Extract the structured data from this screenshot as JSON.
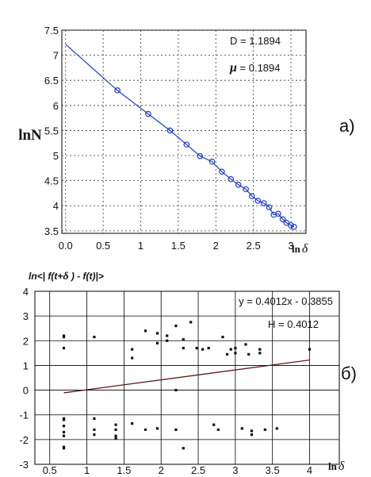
{
  "chart_data": [
    {
      "type": "line",
      "xlabel": {
        "prefix": "ln",
        "symbol": "δ"
      },
      "ylabel": "lnN",
      "xlim": [
        -0.05,
        3.2
      ],
      "ylim": [
        3.45,
        7.5
      ],
      "xticks": [
        "0.0",
        "0.5",
        "1",
        "1.5",
        "2",
        "2.5",
        "3"
      ],
      "xtick_values": [
        0,
        0.5,
        1,
        1.5,
        2,
        2.5,
        3
      ],
      "yticks": [
        "3.5",
        "4",
        "4.5",
        "5",
        "5.5",
        "6",
        "6.5",
        "7",
        "7.5"
      ],
      "ytick_values": [
        3.5,
        4,
        4.5,
        5,
        5.5,
        6,
        6.5,
        7,
        7.5
      ],
      "grid": true,
      "color": "#1f3fbf",
      "annotations": {
        "d_text": "D = 1.1894",
        "mu_symbol": "μ",
        "mu_text": " = 0.1894"
      },
      "panel_label": "а)",
      "x": [
        0.0,
        0.69,
        1.1,
        1.39,
        1.61,
        1.79,
        1.95,
        2.08,
        2.2,
        2.3,
        2.4,
        2.48,
        2.56,
        2.64,
        2.71,
        2.77,
        2.83,
        2.89,
        2.94,
        3.0,
        3.04
      ],
      "y": [
        7.22,
        6.3,
        5.83,
        5.5,
        5.22,
        4.99,
        4.88,
        4.68,
        4.53,
        4.42,
        4.33,
        4.19,
        4.1,
        4.05,
        3.97,
        3.82,
        3.84,
        3.73,
        3.66,
        3.61,
        3.58
      ]
    },
    {
      "type": "scatter",
      "ylabel": {
        "prefix": "ln<| f(t+",
        "symbol": "δ",
        "suffix": " ) - f(t)|>"
      },
      "xlabel": {
        "prefix": "ln",
        "symbol": "δ"
      },
      "xlim": [
        0.3,
        4.4
      ],
      "ylim": [
        -3,
        4
      ],
      "xticks": [
        "0.5",
        "1",
        "1.5",
        "2",
        "2.5",
        "3",
        "3.5",
        "4"
      ],
      "xtick_values": [
        0.5,
        1,
        1.5,
        2,
        2.5,
        3,
        3.5,
        4
      ],
      "yticks": [
        "-3",
        "-2",
        "-1",
        "0",
        "1",
        "2",
        "3",
        "4"
      ],
      "ytick_values": [
        -3,
        -2,
        -1,
        0,
        1,
        2,
        3,
        4
      ],
      "grid": true,
      "annotations": {
        "eq_text": "y = 0.4012x - 0.3855",
        "h_text": "H = 0.4012"
      },
      "panel_label": "б)",
      "trendline": {
        "slope": 0.4012,
        "intercept": -0.3855,
        "x_range": [
          0.69,
          4.0
        ],
        "color": "#5a1a1a"
      },
      "points_x": [
        0.69,
        0.69,
        0.69,
        0.69,
        0.69,
        0.69,
        0.69,
        0.69,
        0.69,
        0.69,
        1.1,
        1.1,
        1.1,
        1.1,
        1.39,
        1.39,
        1.39,
        1.39,
        1.61,
        1.61,
        1.61,
        1.79,
        1.79,
        1.95,
        1.95,
        1.95,
        2.08,
        2.08,
        2.2,
        2.2,
        2.2,
        2.3,
        2.3,
        2.3,
        2.4,
        2.48,
        2.56,
        2.64,
        2.71,
        2.77,
        2.83,
        2.89,
        2.94,
        3.0,
        3.0,
        3.09,
        3.14,
        3.18,
        3.22,
        3.22,
        3.33,
        3.33,
        3.4,
        3.56,
        4.0
      ],
      "points_y": [
        2.15,
        1.7,
        -1.15,
        -1.45,
        -1.7,
        -1.85,
        -2.3,
        -2.35,
        -1.2,
        2.2,
        2.15,
        -1.15,
        -1.6,
        -1.8,
        -1.4,
        -1.6,
        -1.85,
        -1.95,
        1.65,
        1.3,
        -1.35,
        2.4,
        -1.6,
        2.3,
        1.9,
        -1.55,
        2.2,
        2.0,
        2.6,
        0.0,
        -1.6,
        2.05,
        1.7,
        -2.35,
        2.75,
        1.7,
        1.65,
        1.7,
        -1.4,
        -1.6,
        2.15,
        1.45,
        1.65,
        1.5,
        1.7,
        -1.55,
        1.85,
        1.45,
        -1.65,
        -1.8,
        1.65,
        1.5,
        -1.6,
        -1.55,
        1.65
      ]
    }
  ]
}
